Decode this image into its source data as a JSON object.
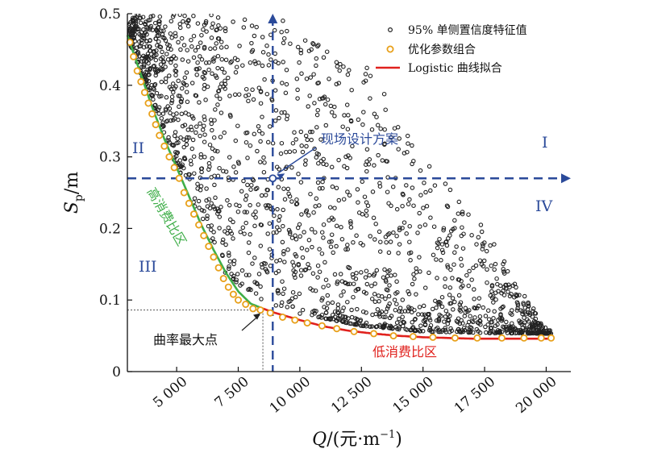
{
  "chart_data": {
    "type": "scatter",
    "xlabel": {
      "italic": "Q",
      "rest": "/(元·m",
      "sup": "−1",
      "close": ")"
    },
    "ylabel": {
      "italic": "S",
      "sub": "p",
      "rest": "/m"
    },
    "xlim": [
      3000,
      21000
    ],
    "ylim": [
      0,
      0.5
    ],
    "x_ticks": [
      5000,
      7500,
      10000,
      12500,
      15000,
      17500,
      20000
    ],
    "x_tick_labels": [
      "5 000",
      "7 500",
      "10 000",
      "12 500",
      "15 000",
      "17 500",
      "20 000"
    ],
    "y_ticks": [
      0,
      0.1,
      0.2,
      0.3,
      0.4,
      0.5
    ],
    "y_tick_labels": [
      "0",
      "0.1",
      "0.2",
      "0.3",
      "0.4",
      "0.5"
    ],
    "legend_position": "top-right",
    "series": [
      {
        "name": "95% 单侧置信度特征值",
        "marker": "open-circle",
        "color": "#222222"
      },
      {
        "name": "优化参数组合",
        "marker": "open-circle",
        "color": "#e8a01a"
      },
      {
        "name": "Logistic 曲线拟合",
        "marker": "line",
        "color": "#e0211d"
      }
    ],
    "optimized_points": [
      {
        "x": 3100,
        "y": 0.46
      },
      {
        "x": 3250,
        "y": 0.44
      },
      {
        "x": 3400,
        "y": 0.42
      },
      {
        "x": 3550,
        "y": 0.405
      },
      {
        "x": 3700,
        "y": 0.39
      },
      {
        "x": 3850,
        "y": 0.375
      },
      {
        "x": 4000,
        "y": 0.36
      },
      {
        "x": 4150,
        "y": 0.345
      },
      {
        "x": 4300,
        "y": 0.33
      },
      {
        "x": 4500,
        "y": 0.315
      },
      {
        "x": 4700,
        "y": 0.3
      },
      {
        "x": 4900,
        "y": 0.285
      },
      {
        "x": 5100,
        "y": 0.27
      },
      {
        "x": 5300,
        "y": 0.25
      },
      {
        "x": 5500,
        "y": 0.235
      },
      {
        "x": 5700,
        "y": 0.22
      },
      {
        "x": 5900,
        "y": 0.205
      },
      {
        "x": 6100,
        "y": 0.19
      },
      {
        "x": 6300,
        "y": 0.175
      },
      {
        "x": 6500,
        "y": 0.16
      },
      {
        "x": 6700,
        "y": 0.145
      },
      {
        "x": 6900,
        "y": 0.13
      },
      {
        "x": 7100,
        "y": 0.118
      },
      {
        "x": 7300,
        "y": 0.108
      },
      {
        "x": 7500,
        "y": 0.1
      },
      {
        "x": 7800,
        "y": 0.094
      },
      {
        "x": 8100,
        "y": 0.088
      },
      {
        "x": 8400,
        "y": 0.086
      },
      {
        "x": 8800,
        "y": 0.082
      },
      {
        "x": 9300,
        "y": 0.076
      },
      {
        "x": 9800,
        "y": 0.072
      },
      {
        "x": 10300,
        "y": 0.068
      },
      {
        "x": 10900,
        "y": 0.064
      },
      {
        "x": 11500,
        "y": 0.06
      },
      {
        "x": 12200,
        "y": 0.056
      },
      {
        "x": 13000,
        "y": 0.053
      },
      {
        "x": 13800,
        "y": 0.05
      },
      {
        "x": 14600,
        "y": 0.049
      },
      {
        "x": 15400,
        "y": 0.048
      },
      {
        "x": 16300,
        "y": 0.047
      },
      {
        "x": 17200,
        "y": 0.047
      },
      {
        "x": 18200,
        "y": 0.047
      },
      {
        "x": 19100,
        "y": 0.047
      },
      {
        "x": 19800,
        "y": 0.047
      },
      {
        "x": 20200,
        "y": 0.047
      }
    ],
    "logistic_fit": {
      "x": [
        3000,
        3500,
        4000,
        4500,
        5000,
        5500,
        6000,
        6500,
        7000,
        7500,
        8000,
        8500,
        9000,
        9500,
        10000,
        11000,
        12000,
        13000,
        14000,
        15000,
        16000,
        17000,
        18000,
        19000,
        20000,
        20200
      ],
      "y": [
        0.47,
        0.42,
        0.37,
        0.325,
        0.285,
        0.245,
        0.205,
        0.17,
        0.138,
        0.112,
        0.095,
        0.088,
        0.082,
        0.077,
        0.072,
        0.063,
        0.057,
        0.053,
        0.05,
        0.048,
        0.047,
        0.046,
        0.046,
        0.046,
        0.046,
        0.046
      ],
      "segments": [
        {
          "label": "高消费比区",
          "color": "#3fae49",
          "x_from": 3000,
          "x_to": 8500
        },
        {
          "label": "低消费比区",
          "color": "#e0211d",
          "x_from": 8500,
          "x_to": 20200
        }
      ]
    },
    "cloud": {
      "description_free": true,
      "count": 1800,
      "envelope_lower": {
        "x": [
          3000,
          5000,
          7000,
          8500,
          10000,
          12500,
          15000,
          17500,
          20000
        ],
        "y": [
          0.46,
          0.28,
          0.13,
          0.088,
          0.075,
          0.058,
          0.05,
          0.048,
          0.047
        ]
      },
      "envelope_upper": {
        "x": [
          3000,
          5000,
          7000,
          9000,
          10500,
          12500,
          15000,
          17500,
          20000
        ],
        "y": [
          0.5,
          0.5,
          0.5,
          0.5,
          0.46,
          0.44,
          0.3,
          0.2,
          0.06
        ]
      }
    },
    "design_scheme": {
      "x": 8900,
      "y": 0.27,
      "label": "现场设计方案"
    },
    "max_curvature": {
      "x": 8500,
      "y": 0.086,
      "label": "曲率最大点"
    },
    "regions": [
      {
        "label": "I",
        "x": 18500,
        "y": 0.325
      },
      {
        "label": "II",
        "x": 3500,
        "y": 0.315
      },
      {
        "label": "III",
        "x": 3800,
        "y": 0.145
      },
      {
        "label": "IV",
        "x": 18500,
        "y": 0.235
      }
    ],
    "colors": {
      "cloud": "#222222",
      "optimized": "#e8a01a",
      "fit_red": "#e0211d",
      "fit_green": "#3fae49",
      "guide": "#2b4a9a"
    }
  }
}
